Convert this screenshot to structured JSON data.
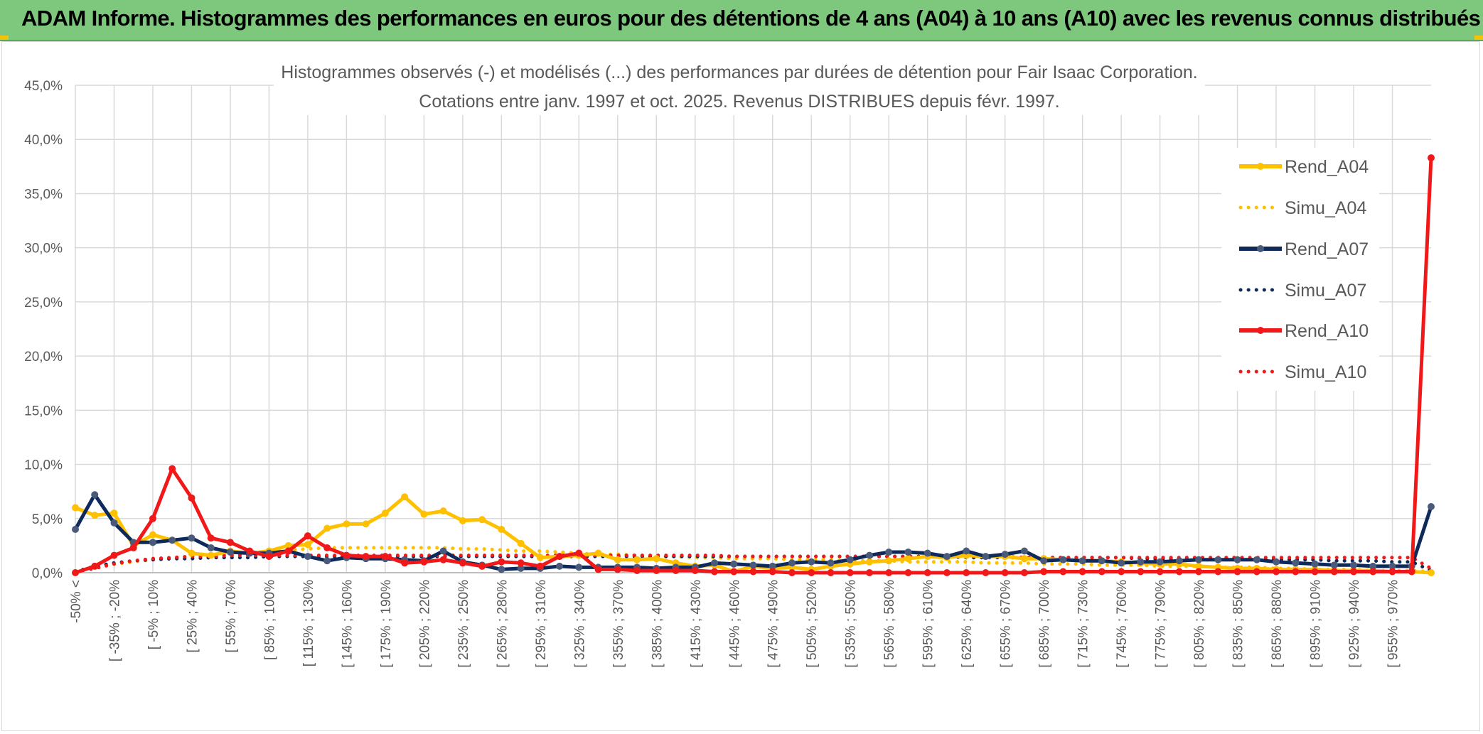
{
  "header": {
    "title": "ADAM Informe. Histogrammes des performances en euros pour des détentions de 4 ans (A04) à 10 ans (A10) avec les revenus connus distribués"
  },
  "colors": {
    "header_bg": "#7ec87e",
    "A04": "#ffc000",
    "A07": "#0e2a5a",
    "A07_marker": "#4a5a7a",
    "A10": "#f01818"
  },
  "chart_data": {
    "type": "line",
    "title": "Histogrammes observés (-) et modélisés (...) des performances par durées de détention pour Fair Isaac Corporation.",
    "subtitle": "Cotations entre janv. 1997 et oct. 2025. Revenus DISTRIBUES depuis févr. 1997.",
    "xlabel": "",
    "ylabel": "",
    "ylim": [
      0,
      45
    ],
    "yticks": [
      "0,0%",
      "5,0%",
      "10,0%",
      "15,0%",
      "20,0%",
      "25,0%",
      "30,0%",
      "35,0%",
      "40,0%",
      "45,0%"
    ],
    "grid": true,
    "legend_position": "right",
    "x_tick_labels": [
      "-50% <",
      "[ -35% ; -20%",
      "[ -5% ; 10%",
      "[ 25% ; 40%",
      "[ 55% ; 70%",
      "[ 85% ; 100%",
      "[ 115% ; 130%",
      "[ 145% ; 160%",
      "[ 175% ; 190%",
      "[ 205% ; 220%",
      "[ 235% ; 250%",
      "[ 265% ; 280%",
      "[ 295% ; 310%",
      "[ 325% ; 340%",
      "[ 355% ; 370%",
      "[ 385% ; 400%",
      "[ 415% ; 430%",
      "[ 445% ; 460%",
      "[ 475% ; 490%",
      "[ 505% ; 520%",
      "[ 535% ; 550%",
      "[ 565% ; 580%",
      "[ 595% ; 610%",
      "[ 625% ; 640%",
      "[ 655% ; 670%",
      "[ 685% ; 700%",
      "[ 715% ; 730%",
      "[ 745% ; 760%",
      "[ 775% ; 790%",
      "[ 805% ; 820%",
      "[ 835% ; 850%",
      "[ 865% ; 880%",
      "[ 895% ; 910%",
      "[ 925% ; 940%",
      "[ 955% ; 970%"
    ],
    "series": [
      {
        "name": "Rend_A04",
        "style": "solid",
        "values": [
          6.0,
          5.3,
          5.5,
          2.5,
          3.5,
          3.0,
          1.8,
          1.6,
          2.0,
          1.8,
          2.0,
          2.5,
          2.6,
          4.1,
          4.5,
          4.5,
          5.5,
          7.0,
          5.4,
          5.7,
          4.8,
          4.9,
          4.0,
          2.7,
          1.4,
          1.5,
          1.6,
          1.8,
          1.2,
          1.2,
          1.3,
          0.9,
          0.6,
          0.7,
          0.1,
          0.6,
          0.4,
          0.5,
          0.3,
          0.6,
          0.8,
          1.0,
          1.1,
          1.3,
          1.5,
          1.4,
          1.6,
          1.5,
          1.5,
          1.3,
          1.3,
          1.2,
          1.1,
          1.1,
          1.0,
          0.9,
          0.8,
          0.8,
          0.6,
          0.5,
          0.4,
          0.4,
          0.3,
          0.3,
          0.3,
          0.2,
          0.2,
          0.2,
          0.1,
          0.1,
          0.0
        ]
      },
      {
        "name": "Simu_A04",
        "style": "dotted",
        "values": [
          0.1,
          0.4,
          0.8,
          1.0,
          1.2,
          1.4,
          1.5,
          1.6,
          1.7,
          1.8,
          2.0,
          2.1,
          2.2,
          2.3,
          2.3,
          2.3,
          2.3,
          2.3,
          2.3,
          2.3,
          2.2,
          2.2,
          2.1,
          2.0,
          2.0,
          1.9,
          1.8,
          1.7,
          1.7,
          1.6,
          1.5,
          1.5,
          1.4,
          1.4,
          1.3,
          1.3,
          1.3,
          1.2,
          1.2,
          1.2,
          1.1,
          1.1,
          1.1,
          1.0,
          1.0,
          1.0,
          1.0,
          0.9,
          0.9,
          0.9,
          0.8,
          0.8,
          0.8,
          0.7,
          0.7,
          0.7,
          0.6,
          0.6,
          0.6,
          0.5,
          0.5,
          0.5,
          0.4,
          0.4,
          0.3,
          0.3,
          0.3,
          0.2,
          0.2,
          0.2,
          0.1
        ]
      },
      {
        "name": "Rend_A07",
        "style": "solid",
        "values": [
          4.0,
          7.2,
          4.6,
          2.8,
          2.8,
          3.0,
          3.2,
          2.3,
          1.9,
          1.8,
          1.8,
          2.0,
          1.5,
          1.1,
          1.4,
          1.3,
          1.3,
          1.2,
          1.1,
          2.0,
          1.0,
          0.7,
          0.3,
          0.4,
          0.4,
          0.6,
          0.5,
          0.5,
          0.5,
          0.5,
          0.4,
          0.5,
          0.5,
          0.9,
          0.8,
          0.7,
          0.6,
          0.9,
          1.0,
          0.9,
          1.2,
          1.6,
          1.9,
          1.9,
          1.8,
          1.5,
          2.0,
          1.5,
          1.7,
          2.0,
          1.1,
          1.2,
          1.1,
          1.1,
          0.9,
          1.0,
          1.0,
          1.1,
          1.2,
          1.2,
          1.2,
          1.2,
          1.0,
          0.9,
          0.8,
          0.7,
          0.7,
          0.6,
          0.6,
          0.6,
          6.1
        ]
      },
      {
        "name": "Simu_A07",
        "style": "dotted",
        "values": [
          0.1,
          0.6,
          0.9,
          1.1,
          1.2,
          1.3,
          1.3,
          1.4,
          1.4,
          1.4,
          1.5,
          1.5,
          1.5,
          1.5,
          1.5,
          1.5,
          1.5,
          1.5,
          1.5,
          1.5,
          1.5,
          1.5,
          1.5,
          1.5,
          1.5,
          1.5,
          1.5,
          1.5,
          1.5,
          1.5,
          1.5,
          1.5,
          1.5,
          1.5,
          1.5,
          1.5,
          1.5,
          1.5,
          1.5,
          1.5,
          1.5,
          1.5,
          1.5,
          1.5,
          1.5,
          1.5,
          1.4,
          1.4,
          1.4,
          1.4,
          1.4,
          1.4,
          1.4,
          1.4,
          1.4,
          1.3,
          1.3,
          1.3,
          1.3,
          1.3,
          1.3,
          1.2,
          1.2,
          1.2,
          1.2,
          1.1,
          1.1,
          1.1,
          1.0,
          1.0,
          0.2
        ]
      },
      {
        "name": "Rend_A10",
        "style": "solid",
        "values": [
          0.0,
          0.6,
          1.6,
          2.3,
          5.0,
          9.6,
          6.9,
          3.2,
          2.8,
          2.0,
          1.5,
          2.0,
          3.4,
          2.3,
          1.6,
          1.5,
          1.5,
          0.9,
          1.0,
          1.2,
          0.9,
          0.6,
          1.0,
          0.9,
          0.6,
          1.5,
          1.8,
          0.3,
          0.3,
          0.2,
          0.2,
          0.2,
          0.2,
          0.1,
          0.1,
          0.1,
          0.1,
          0.0,
          0.0,
          0.0,
          0.0,
          0.0,
          0.0,
          0.0,
          0.0,
          0.0,
          0.0,
          0.0,
          0.0,
          0.0,
          0.1,
          0.1,
          0.1,
          0.1,
          0.1,
          0.1,
          0.1,
          0.1,
          0.1,
          0.1,
          0.1,
          0.1,
          0.1,
          0.1,
          0.1,
          0.1,
          0.1,
          0.1,
          0.1,
          0.1,
          38.3
        ]
      },
      {
        "name": "Simu_A10",
        "style": "dotted",
        "values": [
          0.1,
          0.4,
          0.8,
          1.1,
          1.3,
          1.4,
          1.5,
          1.5,
          1.6,
          1.6,
          1.6,
          1.6,
          1.6,
          1.6,
          1.6,
          1.6,
          1.6,
          1.6,
          1.6,
          1.6,
          1.6,
          1.6,
          1.6,
          1.6,
          1.6,
          1.6,
          1.6,
          1.6,
          1.6,
          1.6,
          1.6,
          1.6,
          1.6,
          1.6,
          1.5,
          1.5,
          1.5,
          1.5,
          1.5,
          1.5,
          1.5,
          1.5,
          1.5,
          1.5,
          1.5,
          1.5,
          1.5,
          1.5,
          1.5,
          1.4,
          1.4,
          1.4,
          1.4,
          1.4,
          1.4,
          1.4,
          1.4,
          1.4,
          1.4,
          1.4,
          1.4,
          1.4,
          1.4,
          1.4,
          1.4,
          1.4,
          1.4,
          1.4,
          1.4,
          1.4,
          0.4
        ]
      }
    ]
  }
}
